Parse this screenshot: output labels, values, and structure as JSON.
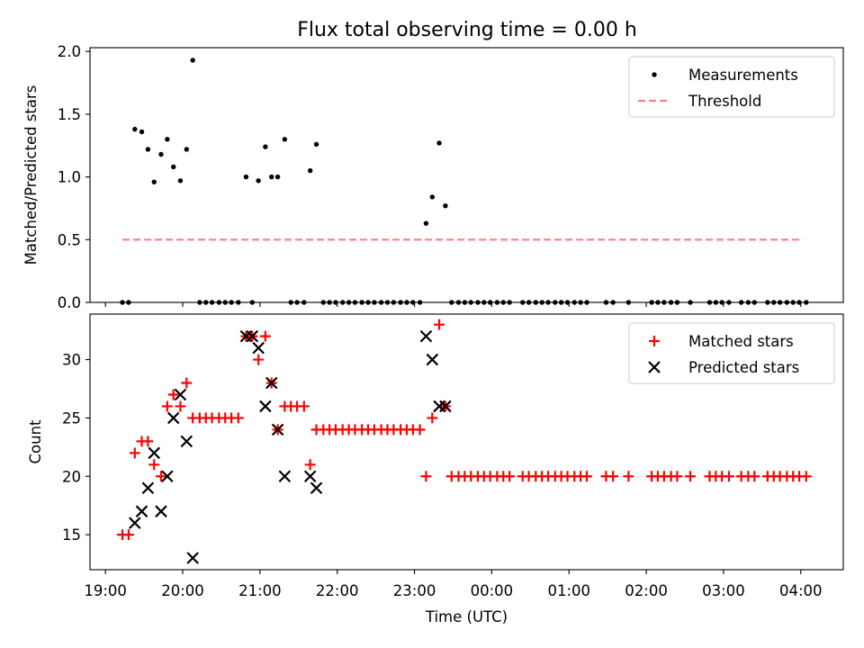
{
  "title": "Flux total observing time = 0.00 h",
  "colors": {
    "measurement": "#000000",
    "threshold": "#ff7f7f",
    "matched": "#ff0000",
    "predicted": "#000000"
  },
  "chart_data": [
    {
      "type": "scatter",
      "title": "Flux total observing time = 0.00 h",
      "ylabel": "Matched/Predicted stars",
      "xlabel": "",
      "xlim": [
        18.8,
        28.55
      ],
      "ylim": [
        0,
        2.03
      ],
      "yticks": [
        "0.0",
        "0.5",
        "1.0",
        "1.5",
        "2.0"
      ],
      "ytick_values": [
        0,
        0.5,
        1.0,
        1.5,
        2.0
      ],
      "legend": {
        "placement": "top-right",
        "entries": [
          "Measurements",
          "Threshold"
        ]
      },
      "threshold": {
        "value": 0.5,
        "x_start": 19.22,
        "x_end": 28.03
      },
      "measurements": [
        {
          "x": 19.22,
          "y": 0
        },
        {
          "x": 19.3,
          "y": 0
        },
        {
          "x": 19.38,
          "y": 1.38
        },
        {
          "x": 19.47,
          "y": 1.36
        },
        {
          "x": 19.55,
          "y": 1.22
        },
        {
          "x": 19.63,
          "y": 0.96
        },
        {
          "x": 19.72,
          "y": 1.18
        },
        {
          "x": 19.8,
          "y": 1.3
        },
        {
          "x": 19.88,
          "y": 1.08
        },
        {
          "x": 19.97,
          "y": 0.97
        },
        {
          "x": 20.05,
          "y": 1.22
        },
        {
          "x": 20.13,
          "y": 1.93
        },
        {
          "x": 20.22,
          "y": 0
        },
        {
          "x": 20.3,
          "y": 0
        },
        {
          "x": 20.38,
          "y": 0
        },
        {
          "x": 20.47,
          "y": 0
        },
        {
          "x": 20.55,
          "y": 0
        },
        {
          "x": 20.63,
          "y": 0
        },
        {
          "x": 20.72,
          "y": 0
        },
        {
          "x": 20.82,
          "y": 1.0
        },
        {
          "x": 20.9,
          "y": 0
        },
        {
          "x": 20.98,
          "y": 0.97
        },
        {
          "x": 21.07,
          "y": 1.24
        },
        {
          "x": 21.15,
          "y": 1.0
        },
        {
          "x": 21.23,
          "y": 1.0
        },
        {
          "x": 21.32,
          "y": 1.3
        },
        {
          "x": 21.4,
          "y": 0
        },
        {
          "x": 21.48,
          "y": 0
        },
        {
          "x": 21.57,
          "y": 0
        },
        {
          "x": 21.65,
          "y": 1.05
        },
        {
          "x": 21.73,
          "y": 1.26
        },
        {
          "x": 21.82,
          "y": 0
        },
        {
          "x": 21.9,
          "y": 0
        },
        {
          "x": 21.98,
          "y": 0
        },
        {
          "x": 22.07,
          "y": 0
        },
        {
          "x": 22.15,
          "y": 0
        },
        {
          "x": 22.23,
          "y": 0
        },
        {
          "x": 22.32,
          "y": 0
        },
        {
          "x": 22.4,
          "y": 0
        },
        {
          "x": 22.48,
          "y": 0
        },
        {
          "x": 22.57,
          "y": 0
        },
        {
          "x": 22.65,
          "y": 0
        },
        {
          "x": 22.73,
          "y": 0
        },
        {
          "x": 22.82,
          "y": 0
        },
        {
          "x": 22.9,
          "y": 0
        },
        {
          "x": 22.98,
          "y": 0
        },
        {
          "x": 23.07,
          "y": 0
        },
        {
          "x": 23.15,
          "y": 0.63
        },
        {
          "x": 23.23,
          "y": 0.84
        },
        {
          "x": 23.32,
          "y": 1.27
        },
        {
          "x": 23.4,
          "y": 0.77
        },
        {
          "x": 23.48,
          "y": 0
        },
        {
          "x": 23.57,
          "y": 0
        },
        {
          "x": 23.65,
          "y": 0
        },
        {
          "x": 23.73,
          "y": 0
        },
        {
          "x": 23.82,
          "y": 0
        },
        {
          "x": 23.9,
          "y": 0
        },
        {
          "x": 23.98,
          "y": 0
        },
        {
          "x": 24.07,
          "y": 0
        },
        {
          "x": 24.15,
          "y": 0
        },
        {
          "x": 24.23,
          "y": 0
        },
        {
          "x": 24.4,
          "y": 0
        },
        {
          "x": 24.48,
          "y": 0
        },
        {
          "x": 24.57,
          "y": 0
        },
        {
          "x": 24.65,
          "y": 0
        },
        {
          "x": 24.73,
          "y": 0
        },
        {
          "x": 24.82,
          "y": 0
        },
        {
          "x": 24.9,
          "y": 0
        },
        {
          "x": 24.98,
          "y": 0
        },
        {
          "x": 25.07,
          "y": 0
        },
        {
          "x": 25.15,
          "y": 0
        },
        {
          "x": 25.23,
          "y": 0
        },
        {
          "x": 25.48,
          "y": 0
        },
        {
          "x": 25.57,
          "y": 0
        },
        {
          "x": 25.77,
          "y": 0
        },
        {
          "x": 26.07,
          "y": 0
        },
        {
          "x": 26.15,
          "y": 0
        },
        {
          "x": 26.23,
          "y": 0
        },
        {
          "x": 26.32,
          "y": 0
        },
        {
          "x": 26.4,
          "y": 0
        },
        {
          "x": 26.57,
          "y": 0
        },
        {
          "x": 26.82,
          "y": 0
        },
        {
          "x": 26.9,
          "y": 0
        },
        {
          "x": 26.98,
          "y": 0
        },
        {
          "x": 27.07,
          "y": 0
        },
        {
          "x": 27.23,
          "y": 0
        },
        {
          "x": 27.32,
          "y": 0
        },
        {
          "x": 27.4,
          "y": 0
        },
        {
          "x": 27.57,
          "y": 0
        },
        {
          "x": 27.65,
          "y": 0
        },
        {
          "x": 27.73,
          "y": 0
        },
        {
          "x": 27.82,
          "y": 0
        },
        {
          "x": 27.9,
          "y": 0
        },
        {
          "x": 27.98,
          "y": 0
        },
        {
          "x": 28.07,
          "y": 0
        }
      ]
    },
    {
      "type": "scatter",
      "xlabel": "Time (UTC)",
      "ylabel": "Count",
      "xlim": [
        18.8,
        28.55
      ],
      "ylim": [
        12,
        33.9
      ],
      "yticks": [
        "15",
        "20",
        "25",
        "30"
      ],
      "ytick_values": [
        15,
        20,
        25,
        30
      ],
      "xticks": [
        "19:00",
        "20:00",
        "21:00",
        "22:00",
        "23:00",
        "00:00",
        "01:00",
        "02:00",
        "03:00",
        "04:00"
      ],
      "xtick_values": [
        19,
        20,
        21,
        22,
        23,
        24,
        25,
        26,
        27,
        28
      ],
      "legend": {
        "placement": "top-right",
        "entries": [
          "Matched stars",
          "Predicted stars"
        ]
      },
      "series": [
        {
          "name": "Matched stars",
          "marker": "plus",
          "points": [
            {
              "x": 19.22,
              "y": 15
            },
            {
              "x": 19.3,
              "y": 15
            },
            {
              "x": 19.38,
              "y": 22
            },
            {
              "x": 19.47,
              "y": 23
            },
            {
              "x": 19.55,
              "y": 23
            },
            {
              "x": 19.63,
              "y": 21
            },
            {
              "x": 19.72,
              "y": 20
            },
            {
              "x": 19.8,
              "y": 26
            },
            {
              "x": 19.88,
              "y": 27
            },
            {
              "x": 19.97,
              "y": 26
            },
            {
              "x": 20.05,
              "y": 28
            },
            {
              "x": 20.13,
              "y": 25
            },
            {
              "x": 20.22,
              "y": 25
            },
            {
              "x": 20.3,
              "y": 25
            },
            {
              "x": 20.38,
              "y": 25
            },
            {
              "x": 20.47,
              "y": 25
            },
            {
              "x": 20.55,
              "y": 25
            },
            {
              "x": 20.63,
              "y": 25
            },
            {
              "x": 20.72,
              "y": 25
            },
            {
              "x": 20.82,
              "y": 32
            },
            {
              "x": 20.9,
              "y": 32
            },
            {
              "x": 20.98,
              "y": 30
            },
            {
              "x": 21.07,
              "y": 32
            },
            {
              "x": 21.15,
              "y": 28
            },
            {
              "x": 21.23,
              "y": 24
            },
            {
              "x": 21.32,
              "y": 26
            },
            {
              "x": 21.4,
              "y": 26
            },
            {
              "x": 21.48,
              "y": 26
            },
            {
              "x": 21.57,
              "y": 26
            },
            {
              "x": 21.65,
              "y": 21
            },
            {
              "x": 21.73,
              "y": 24
            },
            {
              "x": 21.82,
              "y": 24
            },
            {
              "x": 21.9,
              "y": 24
            },
            {
              "x": 21.98,
              "y": 24
            },
            {
              "x": 22.07,
              "y": 24
            },
            {
              "x": 22.15,
              "y": 24
            },
            {
              "x": 22.23,
              "y": 24
            },
            {
              "x": 22.32,
              "y": 24
            },
            {
              "x": 22.4,
              "y": 24
            },
            {
              "x": 22.48,
              "y": 24
            },
            {
              "x": 22.57,
              "y": 24
            },
            {
              "x": 22.65,
              "y": 24
            },
            {
              "x": 22.73,
              "y": 24
            },
            {
              "x": 22.82,
              "y": 24
            },
            {
              "x": 22.9,
              "y": 24
            },
            {
              "x": 22.98,
              "y": 24
            },
            {
              "x": 23.07,
              "y": 24
            },
            {
              "x": 23.15,
              "y": 20
            },
            {
              "x": 23.23,
              "y": 25
            },
            {
              "x": 23.32,
              "y": 33
            },
            {
              "x": 23.4,
              "y": 26
            },
            {
              "x": 23.48,
              "y": 20
            },
            {
              "x": 23.57,
              "y": 20
            },
            {
              "x": 23.65,
              "y": 20
            },
            {
              "x": 23.73,
              "y": 20
            },
            {
              "x": 23.82,
              "y": 20
            },
            {
              "x": 23.9,
              "y": 20
            },
            {
              "x": 23.98,
              "y": 20
            },
            {
              "x": 24.07,
              "y": 20
            },
            {
              "x": 24.15,
              "y": 20
            },
            {
              "x": 24.23,
              "y": 20
            },
            {
              "x": 24.4,
              "y": 20
            },
            {
              "x": 24.48,
              "y": 20
            },
            {
              "x": 24.57,
              "y": 20
            },
            {
              "x": 24.65,
              "y": 20
            },
            {
              "x": 24.73,
              "y": 20
            },
            {
              "x": 24.82,
              "y": 20
            },
            {
              "x": 24.9,
              "y": 20
            },
            {
              "x": 24.98,
              "y": 20
            },
            {
              "x": 25.07,
              "y": 20
            },
            {
              "x": 25.15,
              "y": 20
            },
            {
              "x": 25.23,
              "y": 20
            },
            {
              "x": 25.48,
              "y": 20
            },
            {
              "x": 25.57,
              "y": 20
            },
            {
              "x": 25.77,
              "y": 20
            },
            {
              "x": 26.07,
              "y": 20
            },
            {
              "x": 26.15,
              "y": 20
            },
            {
              "x": 26.23,
              "y": 20
            },
            {
              "x": 26.32,
              "y": 20
            },
            {
              "x": 26.4,
              "y": 20
            },
            {
              "x": 26.57,
              "y": 20
            },
            {
              "x": 26.82,
              "y": 20
            },
            {
              "x": 26.9,
              "y": 20
            },
            {
              "x": 26.98,
              "y": 20
            },
            {
              "x": 27.07,
              "y": 20
            },
            {
              "x": 27.23,
              "y": 20
            },
            {
              "x": 27.32,
              "y": 20
            },
            {
              "x": 27.4,
              "y": 20
            },
            {
              "x": 27.57,
              "y": 20
            },
            {
              "x": 27.65,
              "y": 20
            },
            {
              "x": 27.73,
              "y": 20
            },
            {
              "x": 27.82,
              "y": 20
            },
            {
              "x": 27.9,
              "y": 20
            },
            {
              "x": 27.98,
              "y": 20
            },
            {
              "x": 28.07,
              "y": 20
            }
          ]
        },
        {
          "name": "Predicted stars",
          "marker": "x",
          "points": [
            {
              "x": 19.38,
              "y": 16
            },
            {
              "x": 19.47,
              "y": 17
            },
            {
              "x": 19.55,
              "y": 19
            },
            {
              "x": 19.63,
              "y": 22
            },
            {
              "x": 19.72,
              "y": 17
            },
            {
              "x": 19.8,
              "y": 20
            },
            {
              "x": 19.88,
              "y": 25
            },
            {
              "x": 19.97,
              "y": 27
            },
            {
              "x": 20.05,
              "y": 23
            },
            {
              "x": 20.13,
              "y": 13
            },
            {
              "x": 20.82,
              "y": 32
            },
            {
              "x": 20.9,
              "y": 32
            },
            {
              "x": 20.98,
              "y": 31
            },
            {
              "x": 21.07,
              "y": 26
            },
            {
              "x": 21.15,
              "y": 28
            },
            {
              "x": 21.23,
              "y": 24
            },
            {
              "x": 21.32,
              "y": 20
            },
            {
              "x": 21.65,
              "y": 20
            },
            {
              "x": 21.73,
              "y": 19
            },
            {
              "x": 23.15,
              "y": 32
            },
            {
              "x": 23.23,
              "y": 30
            },
            {
              "x": 23.32,
              "y": 26
            },
            {
              "x": 23.4,
              "y": 26
            }
          ]
        }
      ]
    }
  ]
}
